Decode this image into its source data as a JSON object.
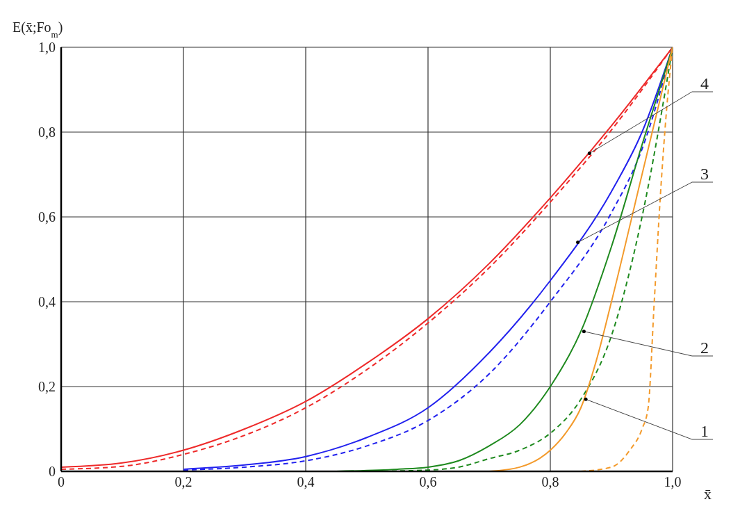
{
  "chart_data": {
    "type": "line",
    "xlabel": "x̄",
    "ylabel": "E(x̄;Fo$_{m}$)",
    "xlim": [
      0,
      1
    ],
    "ylim": [
      0,
      1
    ],
    "xticks": [
      0,
      {
        "value": 0.2,
        "label": "0,2"
      },
      {
        "value": 0.4,
        "label": "0,4"
      },
      {
        "value": 0.6,
        "label": "0,6"
      },
      {
        "value": 0.8,
        "label": "0,8"
      },
      {
        "value": 1,
        "label": "1,0"
      }
    ],
    "yticks": [
      0,
      {
        "value": 0.2,
        "label": "0,2"
      },
      {
        "value": 0.4,
        "label": "0,4"
      },
      {
        "value": 0.6,
        "label": "0,6"
      },
      {
        "value": 0.8,
        "label": "0,8"
      },
      {
        "value": 1,
        "label": "1,0"
      }
    ],
    "grid": true,
    "legend": false,
    "marker": "none",
    "series": [
      {
        "color": "#ee2a2a",
        "line_style": "solid",
        "x": [
          0,
          0.1,
          0.2,
          0.3,
          0.4,
          0.5,
          0.6,
          0.7,
          0.8,
          0.9,
          1
        ],
        "values": [
          0.01,
          0.02,
          0.05,
          0.1,
          0.165,
          0.255,
          0.36,
          0.49,
          0.645,
          0.815,
          1
        ]
      },
      {
        "color": "#ee2a2a",
        "line_style": "dashed",
        "x": [
          0,
          0.1,
          0.2,
          0.3,
          0.4,
          0.5,
          0.6,
          0.7,
          0.8,
          0.9,
          1
        ],
        "values": [
          0.005,
          0.012,
          0.04,
          0.085,
          0.15,
          0.24,
          0.35,
          0.48,
          0.635,
          0.805,
          1
        ]
      },
      {
        "color": "#2222ee",
        "line_style": "solid",
        "x": [
          0.2,
          0.3,
          0.4,
          0.5,
          0.6,
          0.7,
          0.8,
          0.9,
          0.95,
          1
        ],
        "values": [
          0.005,
          0.015,
          0.035,
          0.08,
          0.15,
          0.28,
          0.45,
          0.66,
          0.8,
          1
        ]
      },
      {
        "color": "#2222ee",
        "line_style": "dashed",
        "x": [
          0.2,
          0.3,
          0.4,
          0.5,
          0.6,
          0.7,
          0.8,
          0.9,
          0.95,
          1
        ],
        "values": [
          0.003,
          0.01,
          0.025,
          0.06,
          0.12,
          0.23,
          0.4,
          0.61,
          0.76,
          1
        ]
      },
      {
        "color": "#1f8a1f",
        "line_style": "solid",
        "x": [
          0.45,
          0.55,
          0.6,
          0.65,
          0.7,
          0.75,
          0.8,
          0.85,
          0.9,
          0.95,
          1
        ],
        "values": [
          0,
          0.005,
          0.01,
          0.025,
          0.06,
          0.11,
          0.2,
          0.33,
          0.53,
          0.77,
          1
        ]
      },
      {
        "color": "#1f8a1f",
        "line_style": "dashed",
        "x": [
          0.5,
          0.6,
          0.65,
          0.7,
          0.75,
          0.8,
          0.85,
          0.9,
          0.95,
          1
        ],
        "values": [
          0,
          0.003,
          0.01,
          0.03,
          0.05,
          0.09,
          0.17,
          0.32,
          0.6,
          1
        ]
      },
      {
        "color": "#f39a2b",
        "line_style": "solid",
        "x": [
          0.7,
          0.75,
          0.8,
          0.825,
          0.85,
          0.875,
          0.9,
          0.95,
          1
        ],
        "values": [
          0,
          0.01,
          0.05,
          0.09,
          0.15,
          0.26,
          0.4,
          0.7,
          1
        ]
      },
      {
        "color": "#f39a2b",
        "line_style": "dashed",
        "x": [
          0.85,
          0.9,
          0.93,
          0.95,
          0.96,
          0.97,
          0.98,
          0.99,
          1
        ],
        "values": [
          0,
          0.01,
          0.05,
          0.1,
          0.15,
          0.4,
          0.65,
          0.85,
          1
        ]
      }
    ],
    "annotations": [
      {
        "text": "4",
        "x": 0.864,
        "y": 0.75
      },
      {
        "text": "3",
        "x": 0.845,
        "y": 0.54
      },
      {
        "text": "2",
        "x": 0.855,
        "y": 0.33
      },
      {
        "text": "1",
        "x": 0.858,
        "y": 0.17
      }
    ]
  }
}
